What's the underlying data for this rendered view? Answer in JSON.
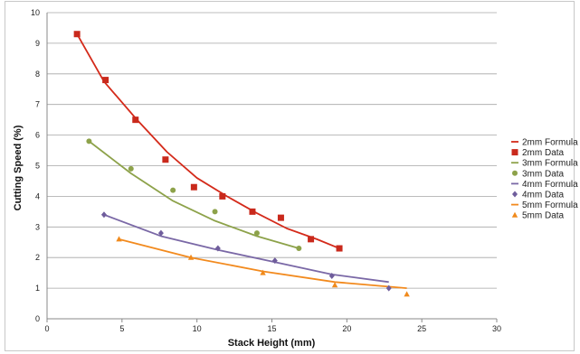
{
  "chart_data": {
    "type": "scatter",
    "xlabel": "Stack Height (mm)",
    "ylabel": "Cutting Speed (%)",
    "xlim": [
      0,
      30
    ],
    "ylim": [
      0,
      10
    ],
    "x_ticks": [
      "0",
      "5",
      "10",
      "15",
      "20",
      "25",
      "30"
    ],
    "y_ticks": [
      "0",
      "1",
      "2",
      "3",
      "4",
      "5",
      "6",
      "7",
      "8",
      "9",
      "10"
    ],
    "grid": "horizontal",
    "legend_position": "right",
    "series": [
      {
        "name": "2mm Formula",
        "kind": "line",
        "color": "#d42a1a",
        "points": [
          [
            2,
            9.3
          ],
          [
            3.8,
            7.75
          ],
          [
            6,
            6.5
          ],
          [
            8,
            5.45
          ],
          [
            10,
            4.6
          ],
          [
            12,
            4.0
          ],
          [
            14,
            3.45
          ],
          [
            16,
            2.95
          ],
          [
            18,
            2.6
          ],
          [
            19.5,
            2.3
          ]
        ]
      },
      {
        "name": "2mm Data",
        "kind": "marker",
        "marker": "square",
        "color": "#c9291c",
        "points": [
          [
            2,
            9.3
          ],
          [
            3.9,
            7.8
          ],
          [
            5.9,
            6.5
          ],
          [
            7.9,
            5.2
          ],
          [
            9.8,
            4.3
          ],
          [
            11.7,
            4.0
          ],
          [
            13.7,
            3.5
          ],
          [
            15.6,
            3.3
          ],
          [
            17.6,
            2.6
          ],
          [
            19.5,
            2.3
          ]
        ]
      },
      {
        "name": "3mm Formula",
        "kind": "line",
        "color": "#8da24a",
        "points": [
          [
            2.8,
            5.8
          ],
          [
            5.6,
            4.75
          ],
          [
            8.4,
            3.85
          ],
          [
            11.2,
            3.2
          ],
          [
            14,
            2.7
          ],
          [
            16.8,
            2.3
          ]
        ]
      },
      {
        "name": "3mm Data",
        "kind": "marker",
        "marker": "circle",
        "color": "#8da24a",
        "points": [
          [
            2.8,
            5.8
          ],
          [
            5.6,
            4.9
          ],
          [
            8.4,
            4.2
          ],
          [
            11.2,
            3.5
          ],
          [
            14,
            2.8
          ],
          [
            16.8,
            2.3
          ]
        ]
      },
      {
        "name": "4mm Formula",
        "kind": "line",
        "color": "#7a68a6",
        "points": [
          [
            3.8,
            3.4
          ],
          [
            7.6,
            2.7
          ],
          [
            11.4,
            2.25
          ],
          [
            15.2,
            1.85
          ],
          [
            19,
            1.45
          ],
          [
            22.8,
            1.2
          ]
        ]
      },
      {
        "name": "4mm Data",
        "kind": "marker",
        "marker": "diamond",
        "color": "#6f5d9c",
        "points": [
          [
            3.8,
            3.4
          ],
          [
            7.6,
            2.8
          ],
          [
            11.4,
            2.3
          ],
          [
            15.2,
            1.9
          ],
          [
            19,
            1.4
          ],
          [
            22.8,
            1.0
          ]
        ]
      },
      {
        "name": "5mm Formula",
        "kind": "line",
        "color": "#f28a1e",
        "points": [
          [
            4.8,
            2.6
          ],
          [
            9.6,
            2.0
          ],
          [
            14.4,
            1.55
          ],
          [
            19.2,
            1.2
          ],
          [
            24,
            1.0
          ]
        ]
      },
      {
        "name": "5mm Data",
        "kind": "marker",
        "marker": "triangle",
        "color": "#f08a1c",
        "points": [
          [
            4.8,
            2.6
          ],
          [
            9.6,
            2.0
          ],
          [
            14.4,
            1.5
          ],
          [
            19.2,
            1.1
          ],
          [
            24,
            0.8
          ]
        ]
      }
    ]
  }
}
